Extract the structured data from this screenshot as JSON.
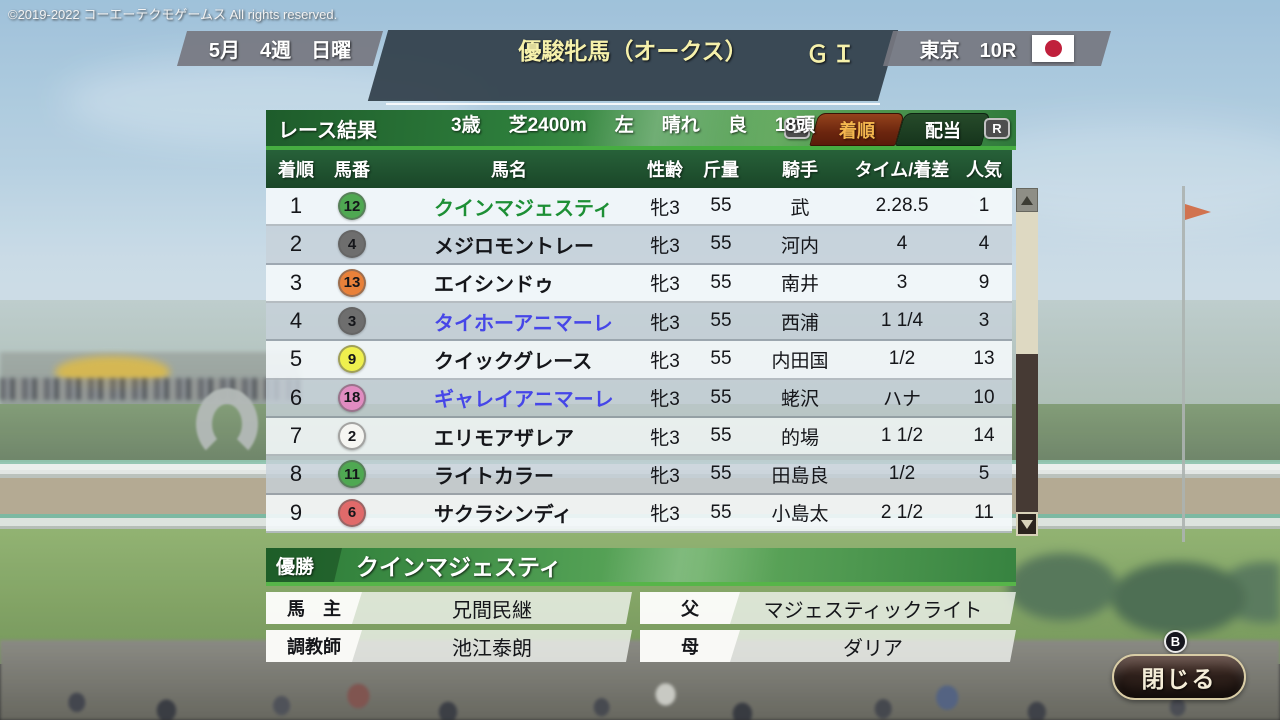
{
  "copyright": "©2019-2022 コーエーテクモゲームス All rights reserved.",
  "header": {
    "date": "5月　4週　日曜",
    "race_name": "優駿牝馬（オークス）",
    "grade": "ＧＩ",
    "venue": "東京　10R",
    "flag": "japan-flag",
    "conditions": [
      "3歳",
      "芝2400m",
      "左",
      "晴れ",
      "良",
      "18頭"
    ]
  },
  "panel": {
    "title": "レース結果",
    "left_bumper": "L",
    "right_bumper": "R",
    "tabs": [
      {
        "label": "着順",
        "active": true
      },
      {
        "label": "配当",
        "active": false
      }
    ]
  },
  "table": {
    "headers": [
      "着順",
      "馬番",
      "馬名",
      "性齢",
      "斤量",
      "騎手",
      "タイム/着差",
      "人気"
    ],
    "rows": [
      {
        "pos": "1",
        "num": "12",
        "bracket_color": "#4fa852",
        "name": "クインマジェスティ",
        "name_color": "#1d8f35",
        "sex_age": "牝3",
        "weight": "55",
        "jockey": "武",
        "time": "2.28.5",
        "odds_rank": "1"
      },
      {
        "pos": "2",
        "num": "4",
        "bracket_color": "#6e6e6e",
        "name": "メジロモントレー",
        "name_color": "#15161a",
        "sex_age": "牝3",
        "weight": "55",
        "jockey": "河内",
        "time": "4",
        "odds_rank": "4"
      },
      {
        "pos": "3",
        "num": "13",
        "bracket_color": "#e8813a",
        "name": "エイシンドゥ",
        "name_color": "#15161a",
        "sex_age": "牝3",
        "weight": "55",
        "jockey": "南井",
        "time": "3",
        "odds_rank": "9"
      },
      {
        "pos": "4",
        "num": "3",
        "bracket_color": "#6e6e6e",
        "name": "タイホーアニマーレ",
        "name_color": "#4646e8",
        "sex_age": "牝3",
        "weight": "55",
        "jockey": "西浦",
        "time": "1 1/4",
        "odds_rank": "3"
      },
      {
        "pos": "5",
        "num": "9",
        "bracket_color": "#eff04e",
        "name": "クイックグレース",
        "name_color": "#15161a",
        "sex_age": "牝3",
        "weight": "55",
        "jockey": "内田国",
        "time": "1/2",
        "odds_rank": "13"
      },
      {
        "pos": "6",
        "num": "18",
        "bracket_color": "#e18cc1",
        "name": "ギャレイアニマーレ",
        "name_color": "#4646e8",
        "sex_age": "牝3",
        "weight": "55",
        "jockey": "蛯沢",
        "time": "ハナ",
        "odds_rank": "10"
      },
      {
        "pos": "7",
        "num": "2",
        "bracket_color": "#f6f6f2",
        "name": "エリモアザレア",
        "name_color": "#15161a",
        "sex_age": "牝3",
        "weight": "55",
        "jockey": "的場",
        "time": "1 1/2",
        "odds_rank": "14"
      },
      {
        "pos": "8",
        "num": "11",
        "bracket_color": "#4fa852",
        "name": "ライトカラー",
        "name_color": "#15161a",
        "sex_age": "牝3",
        "weight": "55",
        "jockey": "田島良",
        "time": "1/2",
        "odds_rank": "5"
      },
      {
        "pos": "9",
        "num": "6",
        "bracket_color": "#e06a6a",
        "name": "サクラシンディ",
        "name_color": "#15161a",
        "sex_age": "牝3",
        "weight": "55",
        "jockey": "小島太",
        "time": "2 1/2",
        "odds_rank": "11"
      }
    ]
  },
  "winner": {
    "label": "優勝",
    "name": "クインマジェスティ"
  },
  "details": {
    "owner_label": "馬　主",
    "owner": "兄間民継",
    "trainer_label": "調教師",
    "trainer": "池江泰朗",
    "sire_label": "父",
    "sire": "マジェスティックライト",
    "dam_label": "母",
    "dam": "ダリア"
  },
  "footer": {
    "button_hint": "B",
    "close_label": "閉じる"
  },
  "colors": {
    "accent_green_line": "#46ad41",
    "active_tab_bg": "#6b250e",
    "active_tab_text": "#f4b64e",
    "table_header_green": "#1d4f2e",
    "flag_red": "#c0203c"
  }
}
